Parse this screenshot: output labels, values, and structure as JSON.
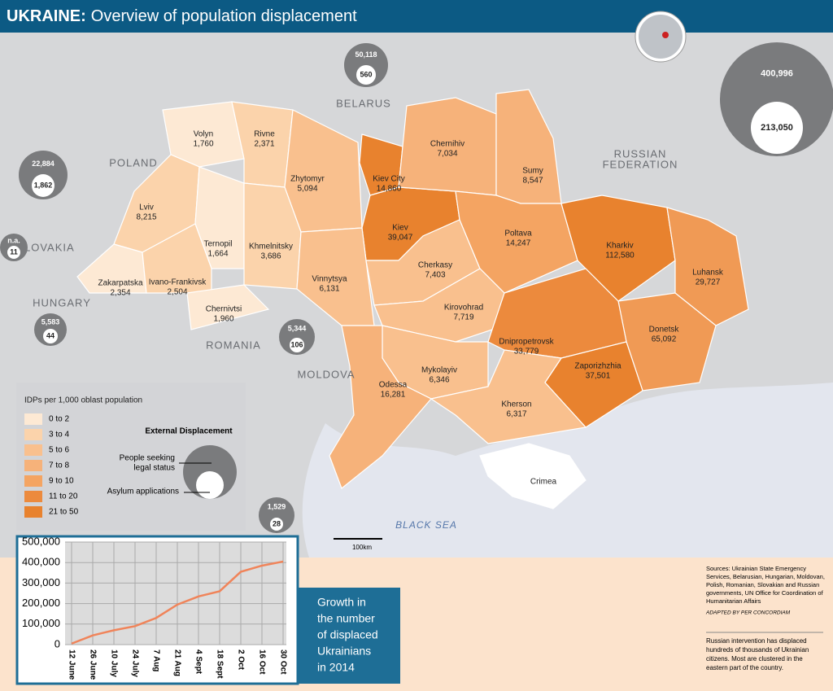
{
  "header": {
    "title_bold": "UKRAINE:",
    "title": "Overview of population displacement"
  },
  "countries": [
    "BELARUS",
    "POLAND",
    "SLOVAKIA",
    "HUNGARY",
    "ROMANIA",
    "MOLDOVA",
    "RUSSIAN",
    "FEDERATION",
    "BLACK SEA"
  ],
  "oblasts": [
    {
      "name": "Volyn",
      "value": "1,760",
      "color": "#fde9d4"
    },
    {
      "name": "Rivne",
      "value": "2,371",
      "color": "#fbd3ab"
    },
    {
      "name": "Zhytomyr",
      "value": "5,094",
      "color": "#f9c08e"
    },
    {
      "name": "Kiev City",
      "value": "14,860",
      "color": "#e8822e"
    },
    {
      "name": "Kiev",
      "value": "39,047",
      "color": "#e8822e"
    },
    {
      "name": "Chernihiv",
      "value": "7,034",
      "color": "#f6b27a"
    },
    {
      "name": "Sumy",
      "value": "8,547",
      "color": "#f6b27a"
    },
    {
      "name": "Lviv",
      "value": "8,215",
      "color": "#fbd3ab"
    },
    {
      "name": "Ternopil",
      "value": "1,664",
      "color": "#fde9d4"
    },
    {
      "name": "Khmelnitsky",
      "value": "3,686",
      "color": "#fbd3ab"
    },
    {
      "name": "Vinnytsya",
      "value": "6,131",
      "color": "#f9c08e"
    },
    {
      "name": "Zakarpatska",
      "value": "2,354",
      "color": "#fde9d4"
    },
    {
      "name": "Ivano-Frankivsk",
      "value": "2,504",
      "color": "#fbd3ab"
    },
    {
      "name": "Chernivtsi",
      "value": "1,960",
      "color": "#fde9d4"
    },
    {
      "name": "Cherkasy",
      "value": "7,403",
      "color": "#f9c08e"
    },
    {
      "name": "Poltava",
      "value": "14,247",
      "color": "#f4a462"
    },
    {
      "name": "Kharkiv",
      "value": "112,580",
      "color": "#e8822e"
    },
    {
      "name": "Luhansk",
      "value": "29,727",
      "color": "#f09a55"
    },
    {
      "name": "Donetsk",
      "value": "65,092",
      "color": "#f09a55"
    },
    {
      "name": "Kirovohrad",
      "value": "7,719",
      "color": "#f9c08e"
    },
    {
      "name": "Dnipropetrovsk",
      "value": "33,779",
      "color": "#ec8a3d"
    },
    {
      "name": "Zaporizhzhia",
      "value": "37,501",
      "color": "#e8822e"
    },
    {
      "name": "Mykolayiv",
      "value": "6,346",
      "color": "#f9c08e"
    },
    {
      "name": "Kherson",
      "value": "6,317",
      "color": "#f9c08e"
    },
    {
      "name": "Odessa",
      "value": "16,281",
      "color": "#f6b27a"
    },
    {
      "name": "Crimea",
      "color": "#ffffff"
    }
  ],
  "external": [
    {
      "outer": "50,118",
      "inner": "560"
    },
    {
      "outer": "400,996",
      "inner": "213,050"
    },
    {
      "outer": "22,884",
      "inner": "1,862"
    },
    {
      "outer": "n.a.",
      "inner": "11"
    },
    {
      "outer": "5,583",
      "inner": "44"
    },
    {
      "outer": "5,344",
      "inner": "106"
    },
    {
      "outer": "1,529",
      "inner": "28"
    }
  ],
  "legend": {
    "title": "IDPs per 1,000 oblast population",
    "classes": [
      {
        "label": "0 to 2",
        "color": "#fde9d4"
      },
      {
        "label": "3 to 4",
        "color": "#fbd3ab"
      },
      {
        "label": "5 to 6",
        "color": "#f9c08e"
      },
      {
        "label": "7 to 8",
        "color": "#f6b27a"
      },
      {
        "label": "9 to 10",
        "color": "#f4a462"
      },
      {
        "label": "11 to 20",
        "color": "#ec8a3d"
      },
      {
        "label": "21 to 50",
        "color": "#e8822e"
      }
    ],
    "external_title": "External Displacement",
    "outer_label": [
      "People seeking",
      "legal status"
    ],
    "inner_label": "Asylum applications"
  },
  "scale": "100km",
  "chart_data": {
    "type": "line",
    "categories": [
      "12 June",
      "26 June",
      "10 July",
      "24 July",
      "7 Aug",
      "21 Aug",
      "4 Sept",
      "18 Sept",
      "2 Oct",
      "16 Oct",
      "30 Oct"
    ],
    "values": [
      5000,
      45000,
      70000,
      90000,
      130000,
      195000,
      235000,
      260000,
      355000,
      385000,
      405000
    ],
    "color": "#f0845a",
    "ylim": [
      0,
      500000
    ],
    "yticks": [
      0,
      {
        "value": 100000,
        "label": "100,000"
      },
      {
        "value": 200000,
        "label": "200,000"
      },
      {
        "value": 300000,
        "label": "300,000"
      },
      {
        "value": 400000,
        "label": "400,000"
      },
      {
        "value": 500000,
        "label": "500,000"
      }
    ],
    "grid": true,
    "annotation": [
      "Growth in",
      "the number",
      "of displaced",
      "Ukrainians",
      "in 2014"
    ]
  },
  "sources": [
    "Sources: Ukrainian State Emergency",
    "Services, Belarusian, Hungarian, Moldovan,",
    "Polish, Romanian, Slovakian and Russian",
    "governments, UN Office for Coordination of",
    "Humanitarian Affairs"
  ],
  "adapted": "ADAPTED BY PER CONCORDIAM",
  "note": [
    "Russian intervention has displaced",
    "hundreds of thousands of Ukrainian",
    "citizens. Most are clustered in the",
    "eastern part of the country."
  ]
}
